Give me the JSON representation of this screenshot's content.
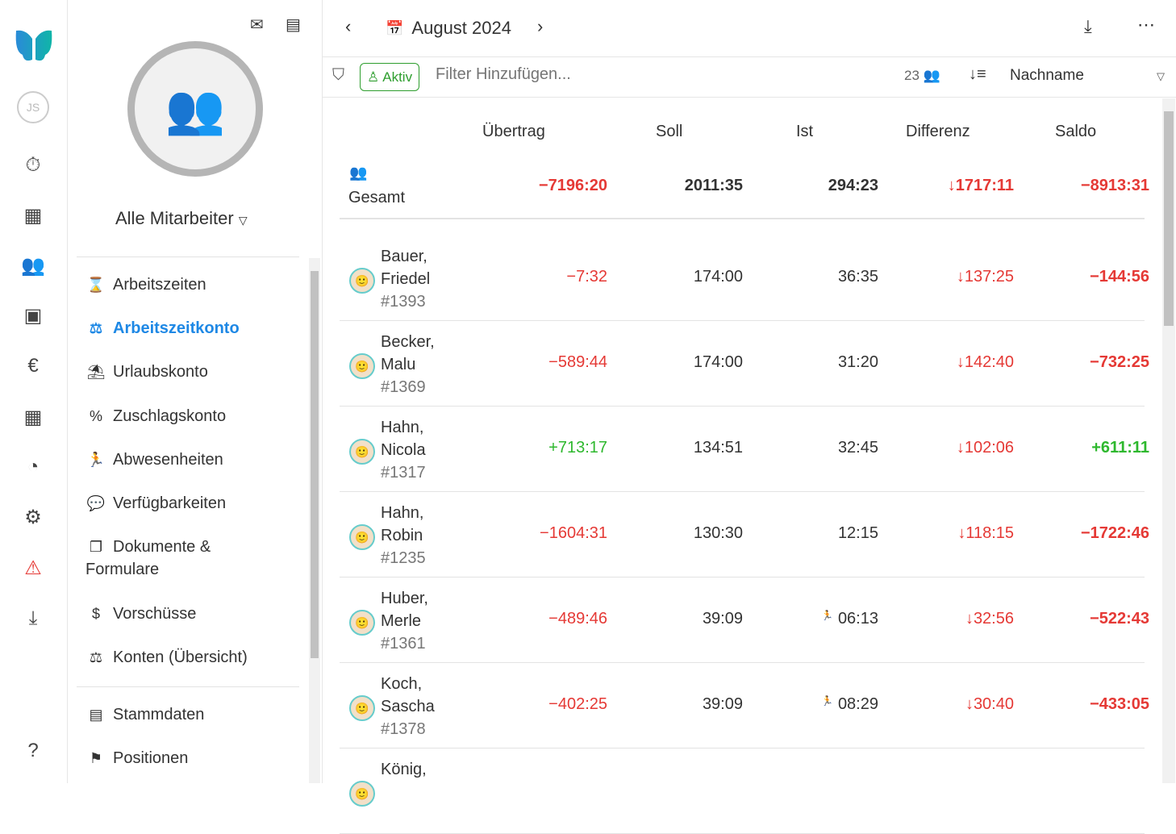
{
  "rail": {
    "user_initials": "JS",
    "icons": [
      "stopwatch-icon",
      "table-icon",
      "team-icon",
      "contact-icon",
      "euro-icon",
      "calendar-icon",
      "pie-chart-icon",
      "gear-icon",
      "warning-icon",
      "download-icon",
      "help-icon"
    ]
  },
  "panel": {
    "selector": "Alle Mitarbeiter",
    "nav": [
      {
        "label": "Arbeitszeiten",
        "icon": "⌛"
      },
      {
        "label": "Arbeitszeitkonto",
        "icon": "⚖",
        "active": true
      },
      {
        "label": "Urlaubskonto",
        "icon": "⛱"
      },
      {
        "label": "Zuschlagskonto",
        "icon": "%"
      },
      {
        "label": "Abwesenheiten",
        "icon": "🏃"
      },
      {
        "label": "Verfügbarkeiten",
        "icon": "💬"
      },
      {
        "label": "Dokumente &",
        "label2": "Formulare",
        "icon": "❐"
      },
      {
        "label": "Vorschüsse",
        "icon": "$"
      },
      {
        "label": "Konten (Übersicht)",
        "icon": "⚖"
      },
      {
        "label": "Stammdaten",
        "icon": "▤"
      },
      {
        "label": "Positionen",
        "icon": "⚑"
      }
    ]
  },
  "header": {
    "month": "August 2024"
  },
  "filter": {
    "active_chip": "Aktiv",
    "placeholder": "Filter Hinzufügen...",
    "count": "23",
    "sort": "Nachname"
  },
  "table": {
    "columns": [
      "Übertrag",
      "Soll",
      "Ist",
      "Differenz",
      "Saldo"
    ],
    "total": {
      "label": "Gesamt",
      "uebertrag": "−7196:20",
      "soll": "2011:35",
      "ist": "294:23",
      "differenz": "↓1717:11",
      "saldo": "−8913:31"
    },
    "rows": [
      {
        "last": "Bauer,",
        "first": "Friedel",
        "id": "#1393",
        "uebertrag": "−7:32",
        "u_pos": false,
        "soll": "174:00",
        "ist": "36:35",
        "ist_icon": false,
        "differenz": "↓137:25",
        "saldo": "−144:56",
        "s_pos": false
      },
      {
        "last": "Becker,",
        "first": "Malu",
        "id": "#1369",
        "uebertrag": "−589:44",
        "u_pos": false,
        "soll": "174:00",
        "ist": "31:20",
        "ist_icon": false,
        "differenz": "↓142:40",
        "saldo": "−732:25",
        "s_pos": false
      },
      {
        "last": "Hahn,",
        "first": "Nicola",
        "id": "#1317",
        "uebertrag": "+713:17",
        "u_pos": true,
        "soll": "134:51",
        "ist": "32:45",
        "ist_icon": false,
        "differenz": "↓102:06",
        "saldo": "+611:11",
        "s_pos": true
      },
      {
        "last": "Hahn,",
        "first": "Robin",
        "id": "#1235",
        "uebertrag": "−1604:31",
        "u_pos": false,
        "soll": "130:30",
        "ist": "12:15",
        "ist_icon": false,
        "differenz": "↓118:15",
        "saldo": "−1722:46",
        "s_pos": false
      },
      {
        "last": "Huber,",
        "first": "Merle",
        "id": "#1361",
        "uebertrag": "−489:46",
        "u_pos": false,
        "soll": "39:09",
        "ist": "06:13",
        "ist_icon": true,
        "differenz": "↓32:56",
        "saldo": "−522:43",
        "s_pos": false
      },
      {
        "last": "Koch,",
        "first": "Sascha",
        "id": "#1378",
        "uebertrag": "−402:25",
        "u_pos": false,
        "soll": "39:09",
        "ist": "08:29",
        "ist_icon": true,
        "differenz": "↓30:40",
        "saldo": "−433:05",
        "s_pos": false
      },
      {
        "last": "König,",
        "first": "",
        "id": "",
        "uebertrag": "",
        "soll": "",
        "ist": "",
        "differenz": "",
        "saldo": ""
      }
    ]
  },
  "colors": {
    "accent": "#1e88e5",
    "negative": "#e53935",
    "positive": "#2eb82e",
    "chip": "#2e9e2e"
  }
}
